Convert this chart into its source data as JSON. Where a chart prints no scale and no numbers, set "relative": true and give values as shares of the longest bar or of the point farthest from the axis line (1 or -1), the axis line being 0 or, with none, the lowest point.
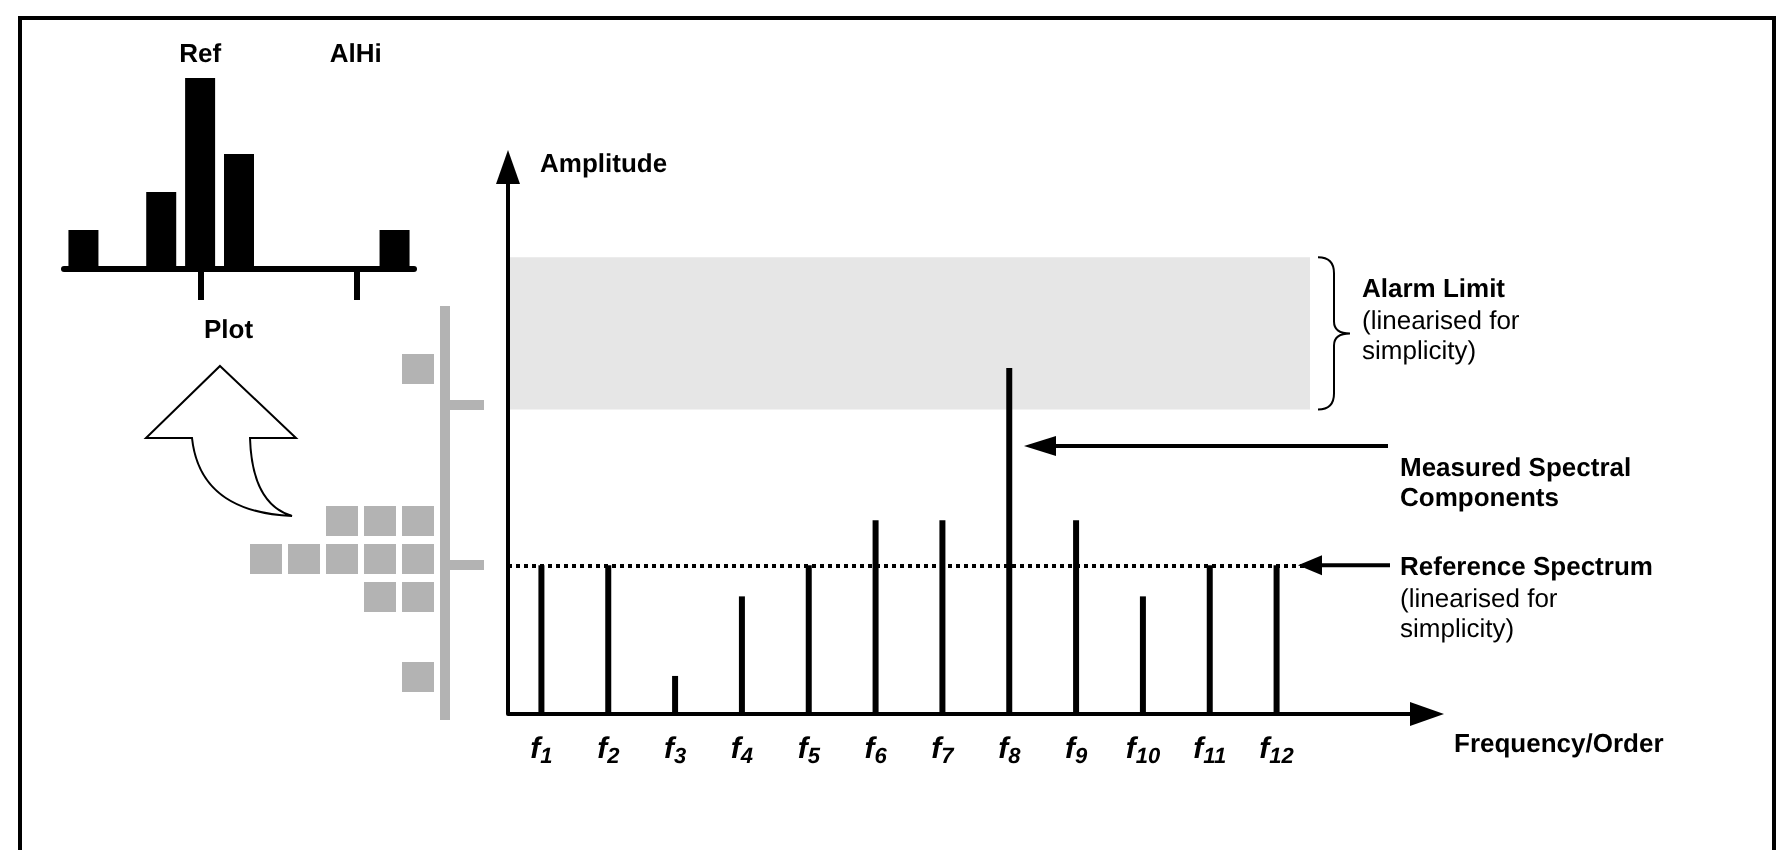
{
  "chart_data": [
    {
      "type": "bar",
      "xlabel": "Frequency/Order",
      "ylabel": "Amplitude",
      "categories": [
        "f$_{1}$",
        "f$_{2}$",
        "f$_{3}$",
        "f$_{4}$",
        "f$_{5}$",
        "f$_{6}$",
        "f$_{7}$",
        "f$_{8}$",
        "f$_{9}$",
        "f$_{10}$",
        "f$_{11}$",
        "f$_{12}$"
      ],
      "values": [
        0.43,
        0.43,
        0.11,
        0.34,
        0.43,
        0.56,
        0.56,
        1,
        0.56,
        0.34,
        0.43,
        0.43
      ],
      "color": "#000000",
      "relative": true,
      "bands": [
        {
          "axis": "y",
          "from": 0.88,
          "to": 1.32,
          "label": "Alarm Limit",
          "color": "#e6e6e6"
        }
      ],
      "ref_lines": [
        {
          "axis": "y",
          "value": 0.43,
          "label": "Reference Spectrum",
          "line_style": "dotted",
          "color": "#000000"
        }
      ],
      "annotations": [
        "(linearised for simplicity)",
        "Measured Spectral Components",
        "(linearised for simplicity)"
      ]
    },
    {
      "type": "bar",
      "title": "Plot",
      "categories": [
        null,
        null,
        null,
        "Ref",
        null,
        null,
        null,
        "AlHi",
        null
      ],
      "values": [
        0.2,
        0,
        0.4,
        1,
        0.6,
        0,
        0,
        0,
        0.2
      ],
      "color": "#000000",
      "relative": true
    }
  ]
}
